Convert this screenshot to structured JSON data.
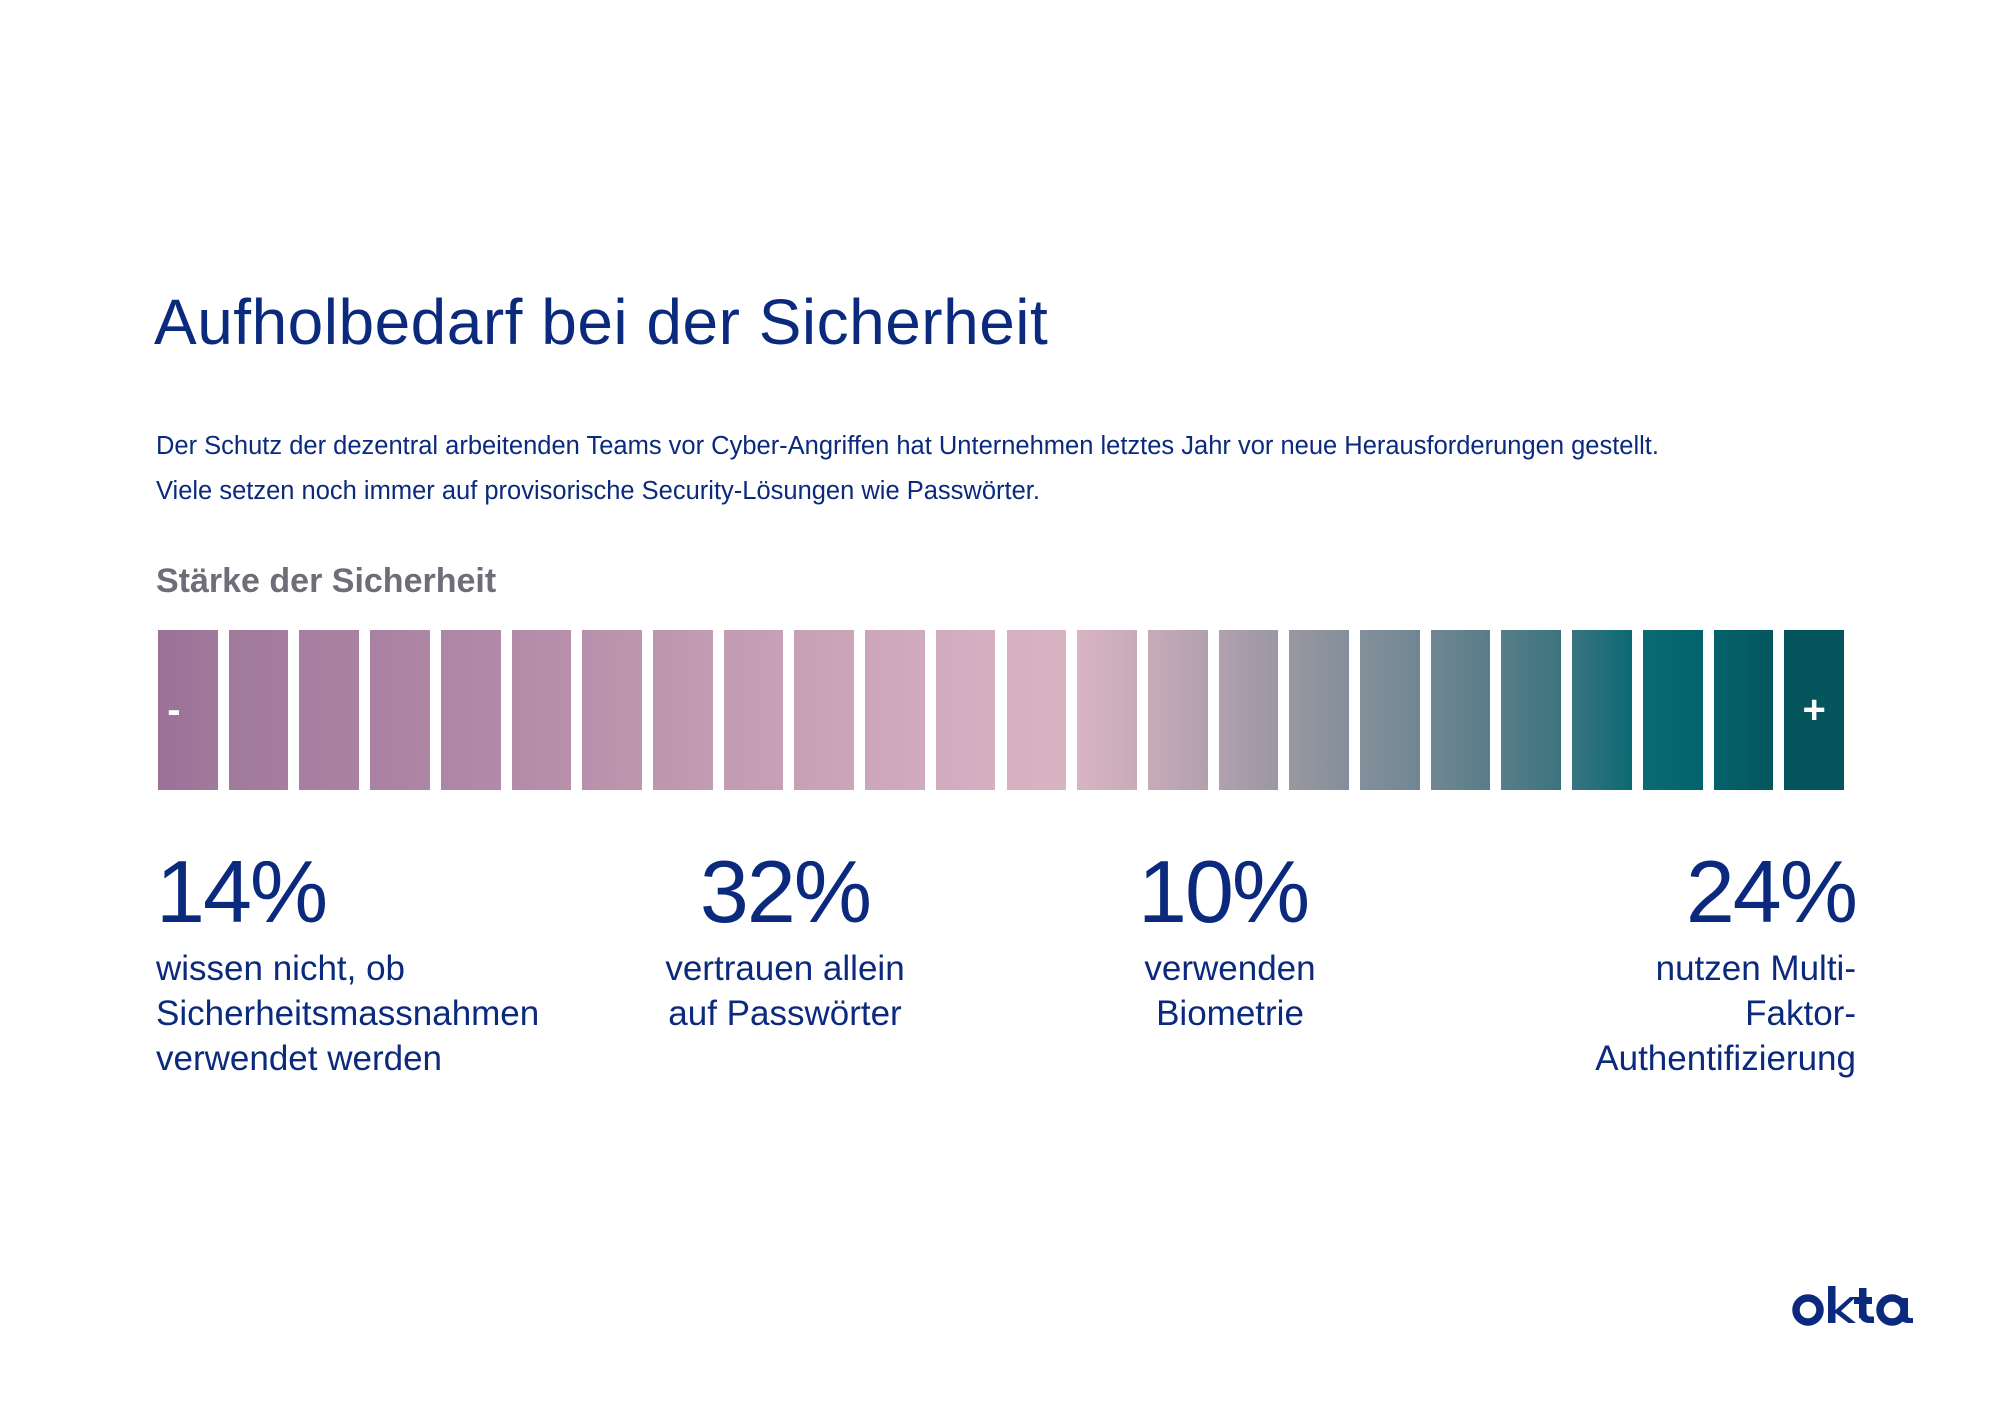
{
  "page": {
    "title": "Aufholbedarf bei der Sicherheit",
    "intro": [
      "Der Schutz der dezentral arbeitenden Teams vor Cyber-Angriffen hat Unternehmen letztes Jahr vor neue Herausforderungen gestellt.",
      "Viele setzen noch immer auf provisorische Security-Lösungen wie Passwörter."
    ],
    "scale": {
      "label": "Stärke der Sicherheit",
      "min_symbol": "-",
      "max_symbol": "+",
      "segment_count": 24,
      "colors": [
        "#9b7198",
        "#a07a9c",
        "#a67e9f",
        "#aa82a1",
        "#ae86a5",
        "#b38ba8",
        "#b890ab",
        "#bd96af",
        "#c29cb3",
        "#c7a0b6",
        "#cca5b9",
        "#d0abbe",
        "#d5b0c1",
        "#d8b4c3",
        "#c8abb9",
        "#b2a0ae",
        "#9a97a3",
        "#848f9a",
        "#6f8793",
        "#587d88",
        "#3a7480",
        "#0b6a73",
        "#02636b",
        "#05555d"
      ]
    },
    "stats": [
      {
        "value": "14%",
        "caption": [
          "wissen nicht, ob",
          "Sicherheitsmassnahmen",
          "verwendet werden"
        ]
      },
      {
        "value": "32%",
        "caption": [
          "vertrauen allein",
          "auf Passwörter"
        ]
      },
      {
        "value": "10%",
        "caption": [
          "verwenden",
          "Biometrie"
        ]
      },
      {
        "value": "24%",
        "caption": [
          "nutzen Multi-",
          "Faktor-",
          "Authentifizierung"
        ]
      }
    ],
    "brand": {
      "logo_text": "okta",
      "color": "#0b2a7e"
    }
  },
  "chart_data": {
    "type": "table",
    "title": "Stärke der Sicherheit",
    "categories": [
      "wissen nicht, ob Sicherheitsmassnahmen verwendet werden",
      "vertrauen allein auf Passwörter",
      "verwenden Biometrie",
      "nutzen Multi-Faktor-Authentifizierung"
    ],
    "values": [
      14,
      32,
      10,
      24
    ],
    "unit": "%",
    "scale_ends": [
      "-",
      "+"
    ]
  }
}
